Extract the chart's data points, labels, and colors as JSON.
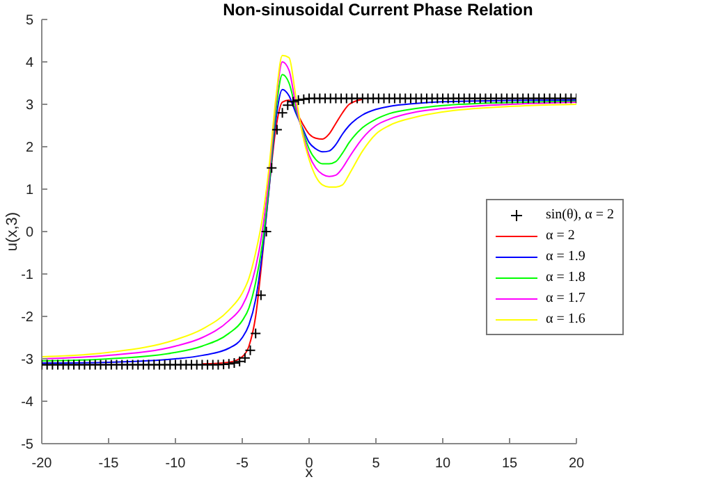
{
  "chart_data": {
    "type": "line",
    "title": "Non-sinusoidal Current Phase Relation",
    "xlabel": "x",
    "ylabel": "u(x,3)",
    "xlim": [
      -20,
      20
    ],
    "ylim": [
      -5,
      5
    ],
    "xticks": [
      -20,
      -15,
      -10,
      -5,
      0,
      5,
      10,
      15,
      20
    ],
    "yticks": [
      -5,
      -4,
      -3,
      -2,
      -1,
      0,
      1,
      2,
      3,
      4,
      5
    ],
    "grid": false,
    "legend": "right",
    "line_style": "solid",
    "series": [
      {
        "name": "sin(θ), α = 2",
        "type": "scatter",
        "marker": "cross",
        "color": "#000000",
        "x": [
          -20,
          -19.6,
          -19.2,
          -18.8,
          -18.4,
          -18,
          -17.6,
          -17.2,
          -16.8,
          -16.4,
          -16,
          -15.6,
          -15.2,
          -14.8,
          -14.4,
          -14,
          -13.6,
          -13.2,
          -12.8,
          -12.4,
          -12,
          -11.6,
          -11.2,
          -10.8,
          -10.4,
          -10,
          -9.6,
          -9.2,
          -8.8,
          -8.4,
          -8,
          -7.6,
          -7.2,
          -6.8,
          -6.4,
          -6,
          -5.6,
          -5.2,
          -4.8,
          -4.4,
          -4,
          -3.6,
          -3.2,
          -2.8,
          -2.4,
          -2,
          -1.6,
          -1.2,
          -0.8,
          -0.4,
          0,
          0.4,
          0.8,
          1.2,
          1.6,
          2,
          2.4,
          2.8,
          3.2,
          3.6,
          4,
          4.4,
          4.8,
          5.2,
          5.6,
          6,
          6.4,
          6.8,
          7.2,
          7.6,
          8,
          8.4,
          8.8,
          9.2,
          9.6,
          10,
          10.4,
          10.8,
          11.2,
          11.6,
          12,
          12.4,
          12.8,
          13.2,
          13.6,
          14,
          14.4,
          14.8,
          15.2,
          15.6,
          16,
          16.4,
          16.8,
          17.2,
          17.6,
          18,
          18.4,
          18.8,
          19.2,
          19.6,
          20
        ],
        "values": [
          -3.14,
          -3.14,
          -3.14,
          -3.14,
          -3.14,
          -3.14,
          -3.14,
          -3.14,
          -3.14,
          -3.14,
          -3.14,
          -3.14,
          -3.14,
          -3.14,
          -3.14,
          -3.14,
          -3.14,
          -3.14,
          -3.14,
          -3.14,
          -3.14,
          -3.14,
          -3.14,
          -3.14,
          -3.14,
          -3.14,
          -3.14,
          -3.14,
          -3.14,
          -3.14,
          -3.14,
          -3.14,
          -3.14,
          -3.14,
          -3.13,
          -3.12,
          -3.1,
          -3.06,
          -2.98,
          -2.8,
          -2.4,
          -1.5,
          0,
          1.5,
          2.4,
          2.8,
          2.98,
          3.06,
          3.1,
          3.12,
          3.14,
          3.14,
          3.14,
          3.14,
          3.14,
          3.14,
          3.14,
          3.14,
          3.14,
          3.14,
          3.14,
          3.14,
          3.14,
          3.14,
          3.14,
          3.14,
          3.14,
          3.14,
          3.14,
          3.14,
          3.14,
          3.14,
          3.14,
          3.14,
          3.14,
          3.14,
          3.14,
          3.14,
          3.14,
          3.14,
          3.14,
          3.14,
          3.14,
          3.14,
          3.14,
          3.14,
          3.14,
          3.14,
          3.14,
          3.14,
          3.14,
          3.14,
          3.14,
          3.14,
          3.14,
          3.14,
          3.14,
          3.14,
          3.14,
          3.14,
          3.14
        ]
      },
      {
        "name": "α = 2",
        "color": "#ff0000",
        "x": [
          -8,
          -6,
          -5,
          -4.5,
          -4,
          -3.5,
          -3,
          -2.5,
          -2,
          -1.5,
          -1,
          -0.5,
          0,
          0.5,
          1,
          1.5,
          2,
          2.5,
          3,
          4
        ],
        "values": [
          -3.12,
          -3.08,
          -2.95,
          -2.7,
          -2.0,
          -0.6,
          1.0,
          2.4,
          3.05,
          3.1,
          2.85,
          2.55,
          2.3,
          2.2,
          2.18,
          2.3,
          2.55,
          2.8,
          3.0,
          3.12
        ]
      },
      {
        "name": "α = 1.9",
        "color": "#0000ff",
        "x": [
          -20,
          -15,
          -10,
          -8,
          -6,
          -5,
          -4.5,
          -4,
          -3.5,
          -3,
          -2.5,
          -2,
          -1.5,
          -1,
          -0.5,
          0,
          0.5,
          1,
          1.5,
          2,
          2.5,
          3,
          4,
          5,
          6,
          8,
          10,
          15,
          20
        ],
        "values": [
          -3.1,
          -3.08,
          -3.0,
          -2.92,
          -2.75,
          -2.5,
          -2.2,
          -1.6,
          -0.5,
          1.0,
          2.6,
          3.35,
          3.2,
          2.8,
          2.45,
          2.1,
          1.95,
          1.88,
          1.9,
          2.05,
          2.3,
          2.5,
          2.75,
          2.88,
          2.95,
          3.02,
          3.06,
          3.09,
          3.1
        ]
      },
      {
        "name": "α = 1.8",
        "color": "#00ff00",
        "x": [
          -20,
          -15,
          -10,
          -8,
          -6,
          -5,
          -4.5,
          -4,
          -3.5,
          -3,
          -2.5,
          -2,
          -1.5,
          -1,
          -0.5,
          0,
          0.5,
          1,
          1.5,
          2,
          2.5,
          3,
          4,
          5,
          6,
          8,
          10,
          15,
          20
        ],
        "values": [
          -3.05,
          -3.0,
          -2.85,
          -2.7,
          -2.4,
          -2.1,
          -1.8,
          -1.2,
          -0.3,
          1.1,
          2.8,
          3.7,
          3.5,
          2.9,
          2.4,
          1.95,
          1.7,
          1.6,
          1.6,
          1.65,
          1.85,
          2.1,
          2.45,
          2.65,
          2.78,
          2.9,
          2.97,
          3.04,
          3.07
        ]
      },
      {
        "name": "α = 1.7",
        "color": "#ff00ff",
        "x": [
          -20,
          -15,
          -10,
          -8,
          -6,
          -5,
          -4.5,
          -4,
          -3.5,
          -3,
          -2.5,
          -2,
          -1.5,
          -1,
          -0.5,
          0,
          0.5,
          1,
          1.5,
          2,
          2.5,
          3,
          4,
          5,
          6,
          8,
          10,
          15,
          20
        ],
        "values": [
          -3.0,
          -2.92,
          -2.7,
          -2.5,
          -2.1,
          -1.75,
          -1.4,
          -0.85,
          0.0,
          1.3,
          3.0,
          4.0,
          3.8,
          3.0,
          2.35,
          1.8,
          1.5,
          1.35,
          1.3,
          1.33,
          1.5,
          1.75,
          2.2,
          2.5,
          2.65,
          2.82,
          2.9,
          3.0,
          3.05
        ]
      },
      {
        "name": "α = 1.6",
        "color": "#ffff00",
        "x": [
          -20,
          -15,
          -10,
          -8,
          -6,
          -5,
          -4.5,
          -4,
          -3.5,
          -3,
          -2.5,
          -2,
          -1.5,
          -1,
          -0.5,
          0,
          0.5,
          1,
          1.5,
          2,
          2.5,
          3,
          4,
          5,
          6,
          8,
          10,
          15,
          20
        ],
        "values": [
          -2.95,
          -2.85,
          -2.55,
          -2.3,
          -1.85,
          -1.45,
          -1.1,
          -0.5,
          0.3,
          1.5,
          3.1,
          4.15,
          4.1,
          3.2,
          2.3,
          1.7,
          1.3,
          1.1,
          1.05,
          1.05,
          1.1,
          1.35,
          1.9,
          2.3,
          2.5,
          2.7,
          2.82,
          2.95,
          3.0
        ]
      }
    ]
  }
}
